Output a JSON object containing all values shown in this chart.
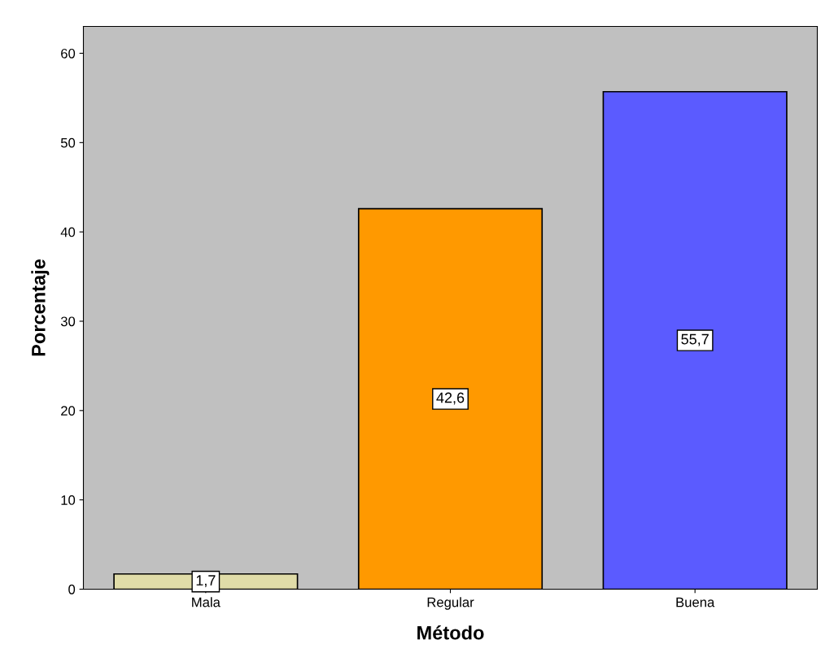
{
  "chart_data": {
    "type": "bar",
    "xlabel": "Método",
    "ylabel": "Porcentaje",
    "categories": [
      "Mala",
      "Regular",
      "Buena"
    ],
    "values": [
      1.7,
      42.6,
      55.7
    ],
    "colors": [
      "#e0dca8",
      "#ff9900",
      "#5b5bff"
    ],
    "value_labels": [
      "1,7",
      "42,6",
      "55,7"
    ],
    "ylim": [
      0,
      63
    ],
    "yticks": [
      0,
      10,
      20,
      30,
      40,
      50,
      60
    ],
    "grid": false
  }
}
